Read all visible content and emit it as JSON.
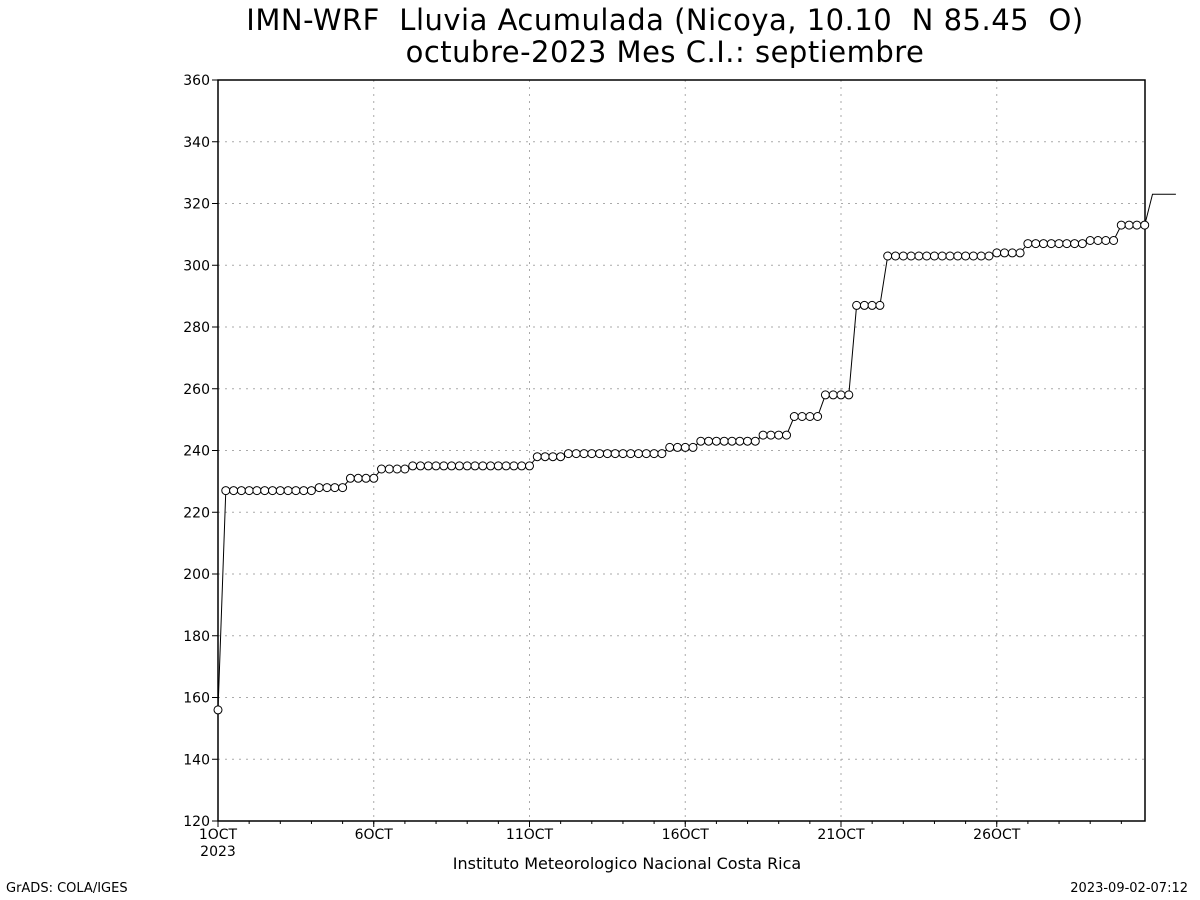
{
  "chart_data": {
    "type": "line",
    "title_line1": "IMN-WRF  Lluvia Acumulada (Nicoya, 10.10  N 85.45  O)",
    "title_line2": "octubre-2023 Mes C.I.: septiembre",
    "xlabel": "Instituto Meteorologico Nacional Costa Rica",
    "ylabel": "",
    "ylim": [
      120,
      360
    ],
    "yticks": [
      120,
      140,
      160,
      180,
      200,
      220,
      240,
      260,
      280,
      300,
      320,
      340,
      360
    ],
    "xlim": [
      1,
      31
    ],
    "xticks": [
      {
        "value": 1,
        "label": "1OCT",
        "sublabel": "2023"
      },
      {
        "value": 6,
        "label": "6OCT",
        "sublabel": ""
      },
      {
        "value": 11,
        "label": "11OCT",
        "sublabel": ""
      },
      {
        "value": 16,
        "label": "16OCT",
        "sublabel": ""
      },
      {
        "value": 21,
        "label": "21OCT",
        "sublabel": ""
      },
      {
        "value": 26,
        "label": "26OCT",
        "sublabel": ""
      }
    ],
    "grid": true,
    "marker": "open-circle",
    "x_step_days": 0.25,
    "values": [
      156,
      227,
      227,
      227,
      227,
      227,
      227,
      227,
      227,
      227,
      227,
      227,
      227,
      228,
      228,
      228,
      228,
      231,
      231,
      231,
      231,
      234,
      234,
      234,
      234,
      235,
      235,
      235,
      235,
      235,
      235,
      235,
      235,
      235,
      235,
      235,
      235,
      235,
      235,
      235,
      235,
      238,
      238,
      238,
      238,
      239,
      239,
      239,
      239,
      239,
      239,
      239,
      239,
      239,
      239,
      239,
      239,
      239,
      241,
      241,
      241,
      241,
      243,
      243,
      243,
      243,
      243,
      243,
      243,
      243,
      245,
      245,
      245,
      245,
      251,
      251,
      251,
      251,
      258,
      258,
      258,
      258,
      287,
      287,
      287,
      287,
      303,
      303,
      303,
      303,
      303,
      303,
      303,
      303,
      303,
      303,
      303,
      303,
      303,
      303,
      304,
      304,
      304,
      304,
      307,
      307,
      307,
      307,
      307,
      307,
      307,
      307,
      308,
      308,
      308,
      308,
      313,
      313,
      313,
      313,
      323,
      323,
      323,
      323
    ]
  },
  "footer": {
    "left": "GrADS: COLA/IGES",
    "right": "2023-09-02-07:12"
  }
}
